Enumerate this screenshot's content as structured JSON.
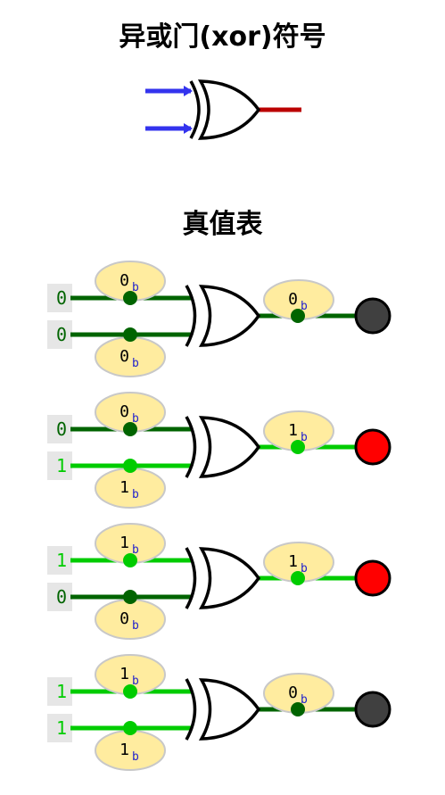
{
  "title": "异或门(xor)符号",
  "truth_table_title": "真值表",
  "colors": {
    "wire_off": "#006400",
    "wire_on": "#00cc00",
    "input_wire_symbol": "#3333ee",
    "output_wire_symbol": "#bb0000",
    "lamp_off": "#404040",
    "lamp_on": "#ff0000",
    "bubble_fill": "#ffec9f",
    "bubble_stroke": "#c8c8c8",
    "input_box_fill": "#e6e6e6",
    "base_suffix_color": "#2222cc"
  },
  "base_suffix": "b",
  "rows": [
    {
      "a": "0",
      "b": "0",
      "out": "0"
    },
    {
      "a": "0",
      "b": "1",
      "out": "1"
    },
    {
      "a": "1",
      "b": "0",
      "out": "1"
    },
    {
      "a": "1",
      "b": "1",
      "out": "0"
    }
  ]
}
